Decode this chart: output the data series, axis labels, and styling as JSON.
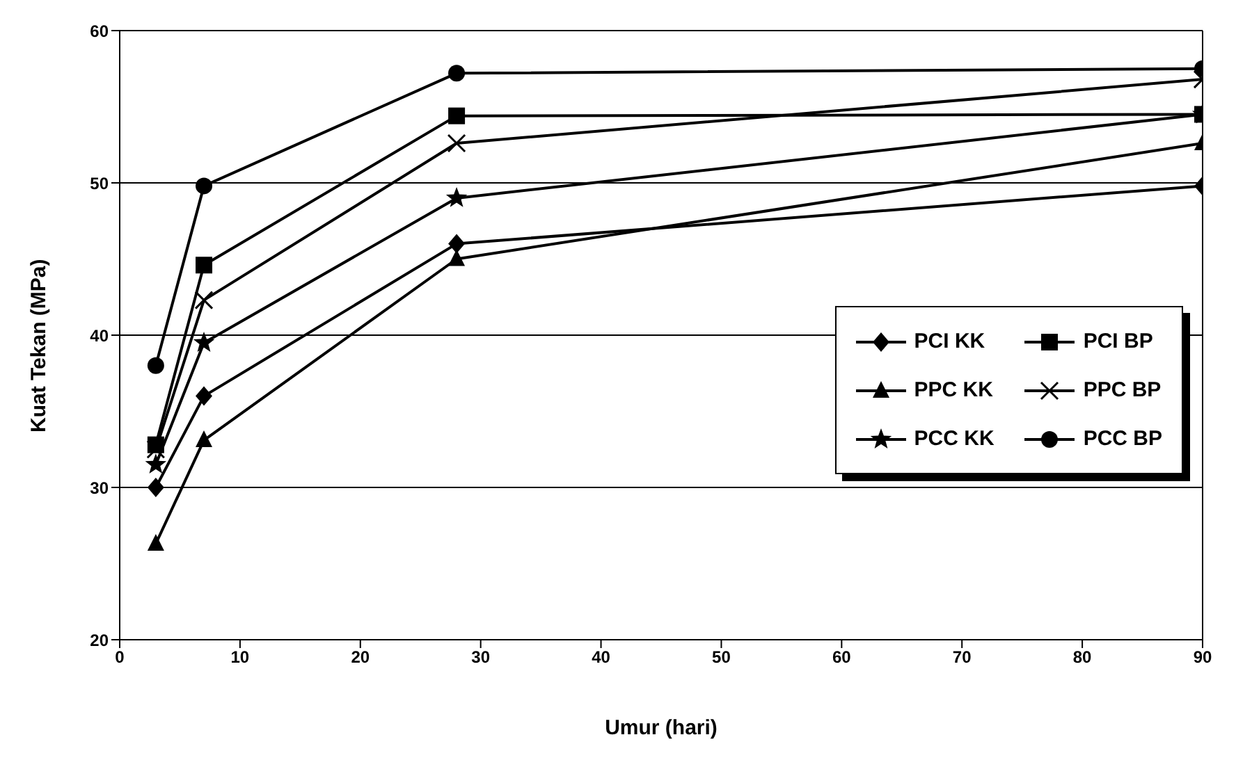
{
  "chart_data": {
    "type": "line",
    "xlabel": "Umur (hari)",
    "ylabel": "Kuat Tekan (MPa)",
    "x": [
      3,
      7,
      28,
      90
    ],
    "series": [
      {
        "name": "PCI KK",
        "color": "#000000",
        "marker": "diamond",
        "values": [
          30,
          36,
          46,
          49.8
        ]
      },
      {
        "name": "PCI BP",
        "color": "#000000",
        "marker": "square",
        "values": [
          32.8,
          44.6,
          54.4,
          54.5
        ]
      },
      {
        "name": "PPC KK",
        "color": "#000000",
        "marker": "triangle",
        "values": [
          26.3,
          33.1,
          45,
          52.6
        ]
      },
      {
        "name": "PPC BP",
        "color": "#000000",
        "marker": "cross",
        "values": [
          32.5,
          42.3,
          52.6,
          56.8
        ]
      },
      {
        "name": "PCC KK",
        "color": "#000000",
        "marker": "star",
        "values": [
          31.5,
          39.5,
          49,
          54.5
        ]
      },
      {
        "name": "PCC BP",
        "color": "#000000",
        "marker": "circle",
        "values": [
          38,
          49.8,
          57.2,
          57.5
        ]
      }
    ],
    "xlim": [
      0,
      90
    ],
    "xticks": [
      0,
      10,
      20,
      30,
      40,
      50,
      60,
      70,
      80,
      90
    ],
    "ylim": [
      20,
      60
    ],
    "yticks": [
      20,
      30,
      40,
      50,
      60
    ],
    "grid": "y",
    "legend": "bottom right",
    "line_style": "solid"
  }
}
